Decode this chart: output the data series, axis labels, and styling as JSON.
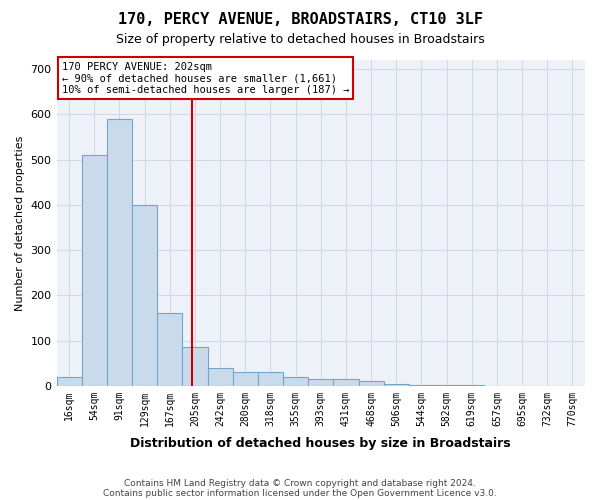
{
  "title": "170, PERCY AVENUE, BROADSTAIRS, CT10 3LF",
  "subtitle": "Size of property relative to detached houses in Broadstairs",
  "xlabel": "Distribution of detached houses by size in Broadstairs",
  "ylabel": "Number of detached properties",
  "bin_labels": [
    "16sqm",
    "54sqm",
    "91sqm",
    "129sqm",
    "167sqm",
    "205sqm",
    "242sqm",
    "280sqm",
    "318sqm",
    "355sqm",
    "393sqm",
    "431sqm",
    "468sqm",
    "506sqm",
    "544sqm",
    "582sqm",
    "619sqm",
    "657sqm",
    "695sqm",
    "732sqm",
    "770sqm"
  ],
  "bar_heights": [
    20,
    510,
    590,
    400,
    160,
    85,
    40,
    30,
    30,
    20,
    15,
    15,
    10,
    5,
    2,
    1,
    1,
    0,
    0,
    0,
    0
  ],
  "bar_color": "#c9daea",
  "bar_edge_color": "#6fa8c9",
  "vline_x": 4.88,
  "vline_color": "#cc0000",
  "ylim": [
    0,
    720
  ],
  "yticks": [
    0,
    100,
    200,
    300,
    400,
    500,
    600,
    700
  ],
  "annotation_text": "170 PERCY AVENUE: 202sqm\n← 90% of detached houses are smaller (1,661)\n10% of semi-detached houses are larger (187) →",
  "annotation_box_color": "#cc0000",
  "footer1": "Contains HM Land Registry data © Crown copyright and database right 2024.",
  "footer2": "Contains public sector information licensed under the Open Government Licence v3.0.",
  "grid_color": "#d0d8e8",
  "bg_color": "#eef2f8"
}
